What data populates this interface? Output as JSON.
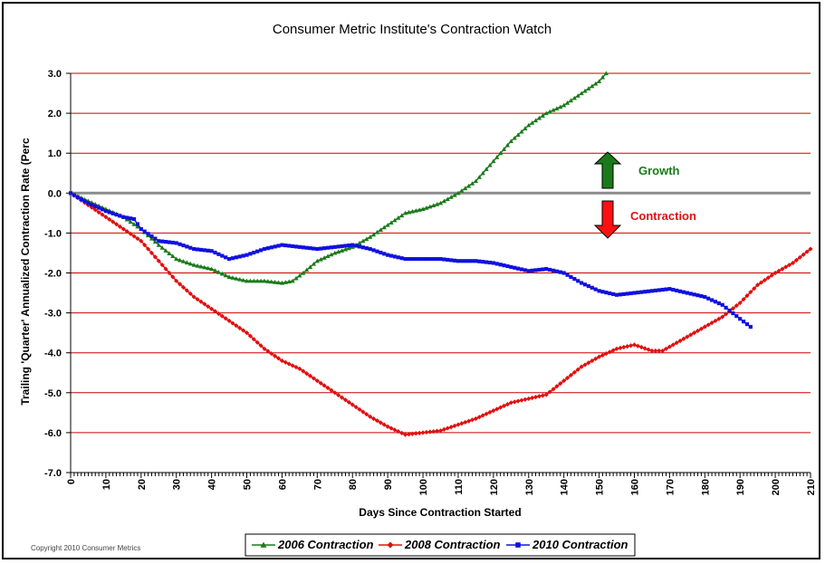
{
  "chart_data": {
    "type": "line",
    "title": "Consumer Metric Institute's Contraction Watch",
    "xlabel": "Days Since Contraction Started",
    "ylabel": "Trailing 'Quarter' Annualized Contraction Rate (Perc",
    "xlim": [
      0,
      210
    ],
    "ylim": [
      -7.0,
      3.0
    ],
    "x_ticks": [
      0,
      10,
      20,
      30,
      40,
      50,
      60,
      70,
      80,
      90,
      100,
      110,
      120,
      130,
      140,
      150,
      160,
      170,
      180,
      190,
      200,
      210
    ],
    "y_ticks": [
      "3.0",
      "2.0",
      "1.0",
      "0.0",
      "-1.0",
      "-2.0",
      "-3.0",
      "-4.0",
      "-5.0",
      "-6.0",
      "-7.0"
    ],
    "grid": true,
    "legend_position": "bottom",
    "series": [
      {
        "name": "2006 Contraction",
        "color": "#1a7a1a",
        "marker": "triangle",
        "points": [
          [
            0,
            0
          ],
          [
            5,
            -0.2
          ],
          [
            10,
            -0.4
          ],
          [
            15,
            -0.6
          ],
          [
            20,
            -0.9
          ],
          [
            25,
            -1.3
          ],
          [
            30,
            -1.65
          ],
          [
            35,
            -1.8
          ],
          [
            40,
            -1.9
          ],
          [
            45,
            -2.1
          ],
          [
            50,
            -2.2
          ],
          [
            55,
            -2.2
          ],
          [
            60,
            -2.25
          ],
          [
            63,
            -2.2
          ],
          [
            66,
            -2.0
          ],
          [
            70,
            -1.7
          ],
          [
            75,
            -1.5
          ],
          [
            80,
            -1.35
          ],
          [
            85,
            -1.1
          ],
          [
            90,
            -0.8
          ],
          [
            95,
            -0.5
          ],
          [
            100,
            -0.4
          ],
          [
            105,
            -0.25
          ],
          [
            110,
            0.0
          ],
          [
            115,
            0.3
          ],
          [
            120,
            0.8
          ],
          [
            125,
            1.3
          ],
          [
            130,
            1.7
          ],
          [
            135,
            2.0
          ],
          [
            140,
            2.2
          ],
          [
            145,
            2.5
          ],
          [
            150,
            2.8
          ],
          [
            152,
            3.0
          ]
        ]
      },
      {
        "name": "2008 Contraction",
        "color": "#e01010",
        "marker": "diamond",
        "points": [
          [
            0,
            0
          ],
          [
            5,
            -0.3
          ],
          [
            10,
            -0.6
          ],
          [
            15,
            -0.9
          ],
          [
            20,
            -1.2
          ],
          [
            25,
            -1.7
          ],
          [
            30,
            -2.2
          ],
          [
            35,
            -2.6
          ],
          [
            40,
            -2.9
          ],
          [
            45,
            -3.2
          ],
          [
            50,
            -3.5
          ],
          [
            55,
            -3.9
          ],
          [
            60,
            -4.2
          ],
          [
            65,
            -4.4
          ],
          [
            70,
            -4.7
          ],
          [
            75,
            -5.0
          ],
          [
            80,
            -5.3
          ],
          [
            85,
            -5.6
          ],
          [
            90,
            -5.85
          ],
          [
            95,
            -6.05
          ],
          [
            100,
            -6.0
          ],
          [
            105,
            -5.95
          ],
          [
            110,
            -5.8
          ],
          [
            115,
            -5.65
          ],
          [
            120,
            -5.45
          ],
          [
            125,
            -5.25
          ],
          [
            130,
            -5.15
          ],
          [
            135,
            -5.05
          ],
          [
            140,
            -4.7
          ],
          [
            145,
            -4.35
          ],
          [
            150,
            -4.1
          ],
          [
            155,
            -3.9
          ],
          [
            160,
            -3.8
          ],
          [
            165,
            -3.95
          ],
          [
            168,
            -3.95
          ],
          [
            170,
            -3.85
          ],
          [
            175,
            -3.6
          ],
          [
            180,
            -3.35
          ],
          [
            185,
            -3.1
          ],
          [
            190,
            -2.75
          ],
          [
            195,
            -2.3
          ],
          [
            200,
            -2.0
          ],
          [
            205,
            -1.75
          ],
          [
            210,
            -1.4
          ]
        ]
      },
      {
        "name": "2010 Contraction",
        "color": "#1010e0",
        "marker": "square",
        "points": [
          [
            0,
            0
          ],
          [
            5,
            -0.25
          ],
          [
            10,
            -0.45
          ],
          [
            15,
            -0.6
          ],
          [
            18,
            -0.65
          ],
          [
            20,
            -0.9
          ],
          [
            25,
            -1.2
          ],
          [
            30,
            -1.25
          ],
          [
            35,
            -1.4
          ],
          [
            40,
            -1.45
          ],
          [
            45,
            -1.65
          ],
          [
            50,
            -1.55
          ],
          [
            55,
            -1.4
          ],
          [
            60,
            -1.3
          ],
          [
            65,
            -1.35
          ],
          [
            70,
            -1.4
          ],
          [
            75,
            -1.35
          ],
          [
            80,
            -1.3
          ],
          [
            85,
            -1.4
          ],
          [
            90,
            -1.55
          ],
          [
            95,
            -1.65
          ],
          [
            100,
            -1.65
          ],
          [
            105,
            -1.65
          ],
          [
            110,
            -1.7
          ],
          [
            115,
            -1.7
          ],
          [
            120,
            -1.75
          ],
          [
            125,
            -1.85
          ],
          [
            130,
            -1.95
          ],
          [
            135,
            -1.9
          ],
          [
            140,
            -2.0
          ],
          [
            145,
            -2.25
          ],
          [
            150,
            -2.45
          ],
          [
            155,
            -2.55
          ],
          [
            160,
            -2.5
          ],
          [
            165,
            -2.45
          ],
          [
            170,
            -2.4
          ],
          [
            175,
            -2.5
          ],
          [
            180,
            -2.6
          ],
          [
            185,
            -2.8
          ],
          [
            190,
            -3.15
          ],
          [
            193,
            -3.35
          ]
        ]
      }
    ],
    "annotations": {
      "growth": "Growth",
      "contraction": "Contraction"
    }
  },
  "copyright": "Copyright 2010 Consumer Metrics"
}
